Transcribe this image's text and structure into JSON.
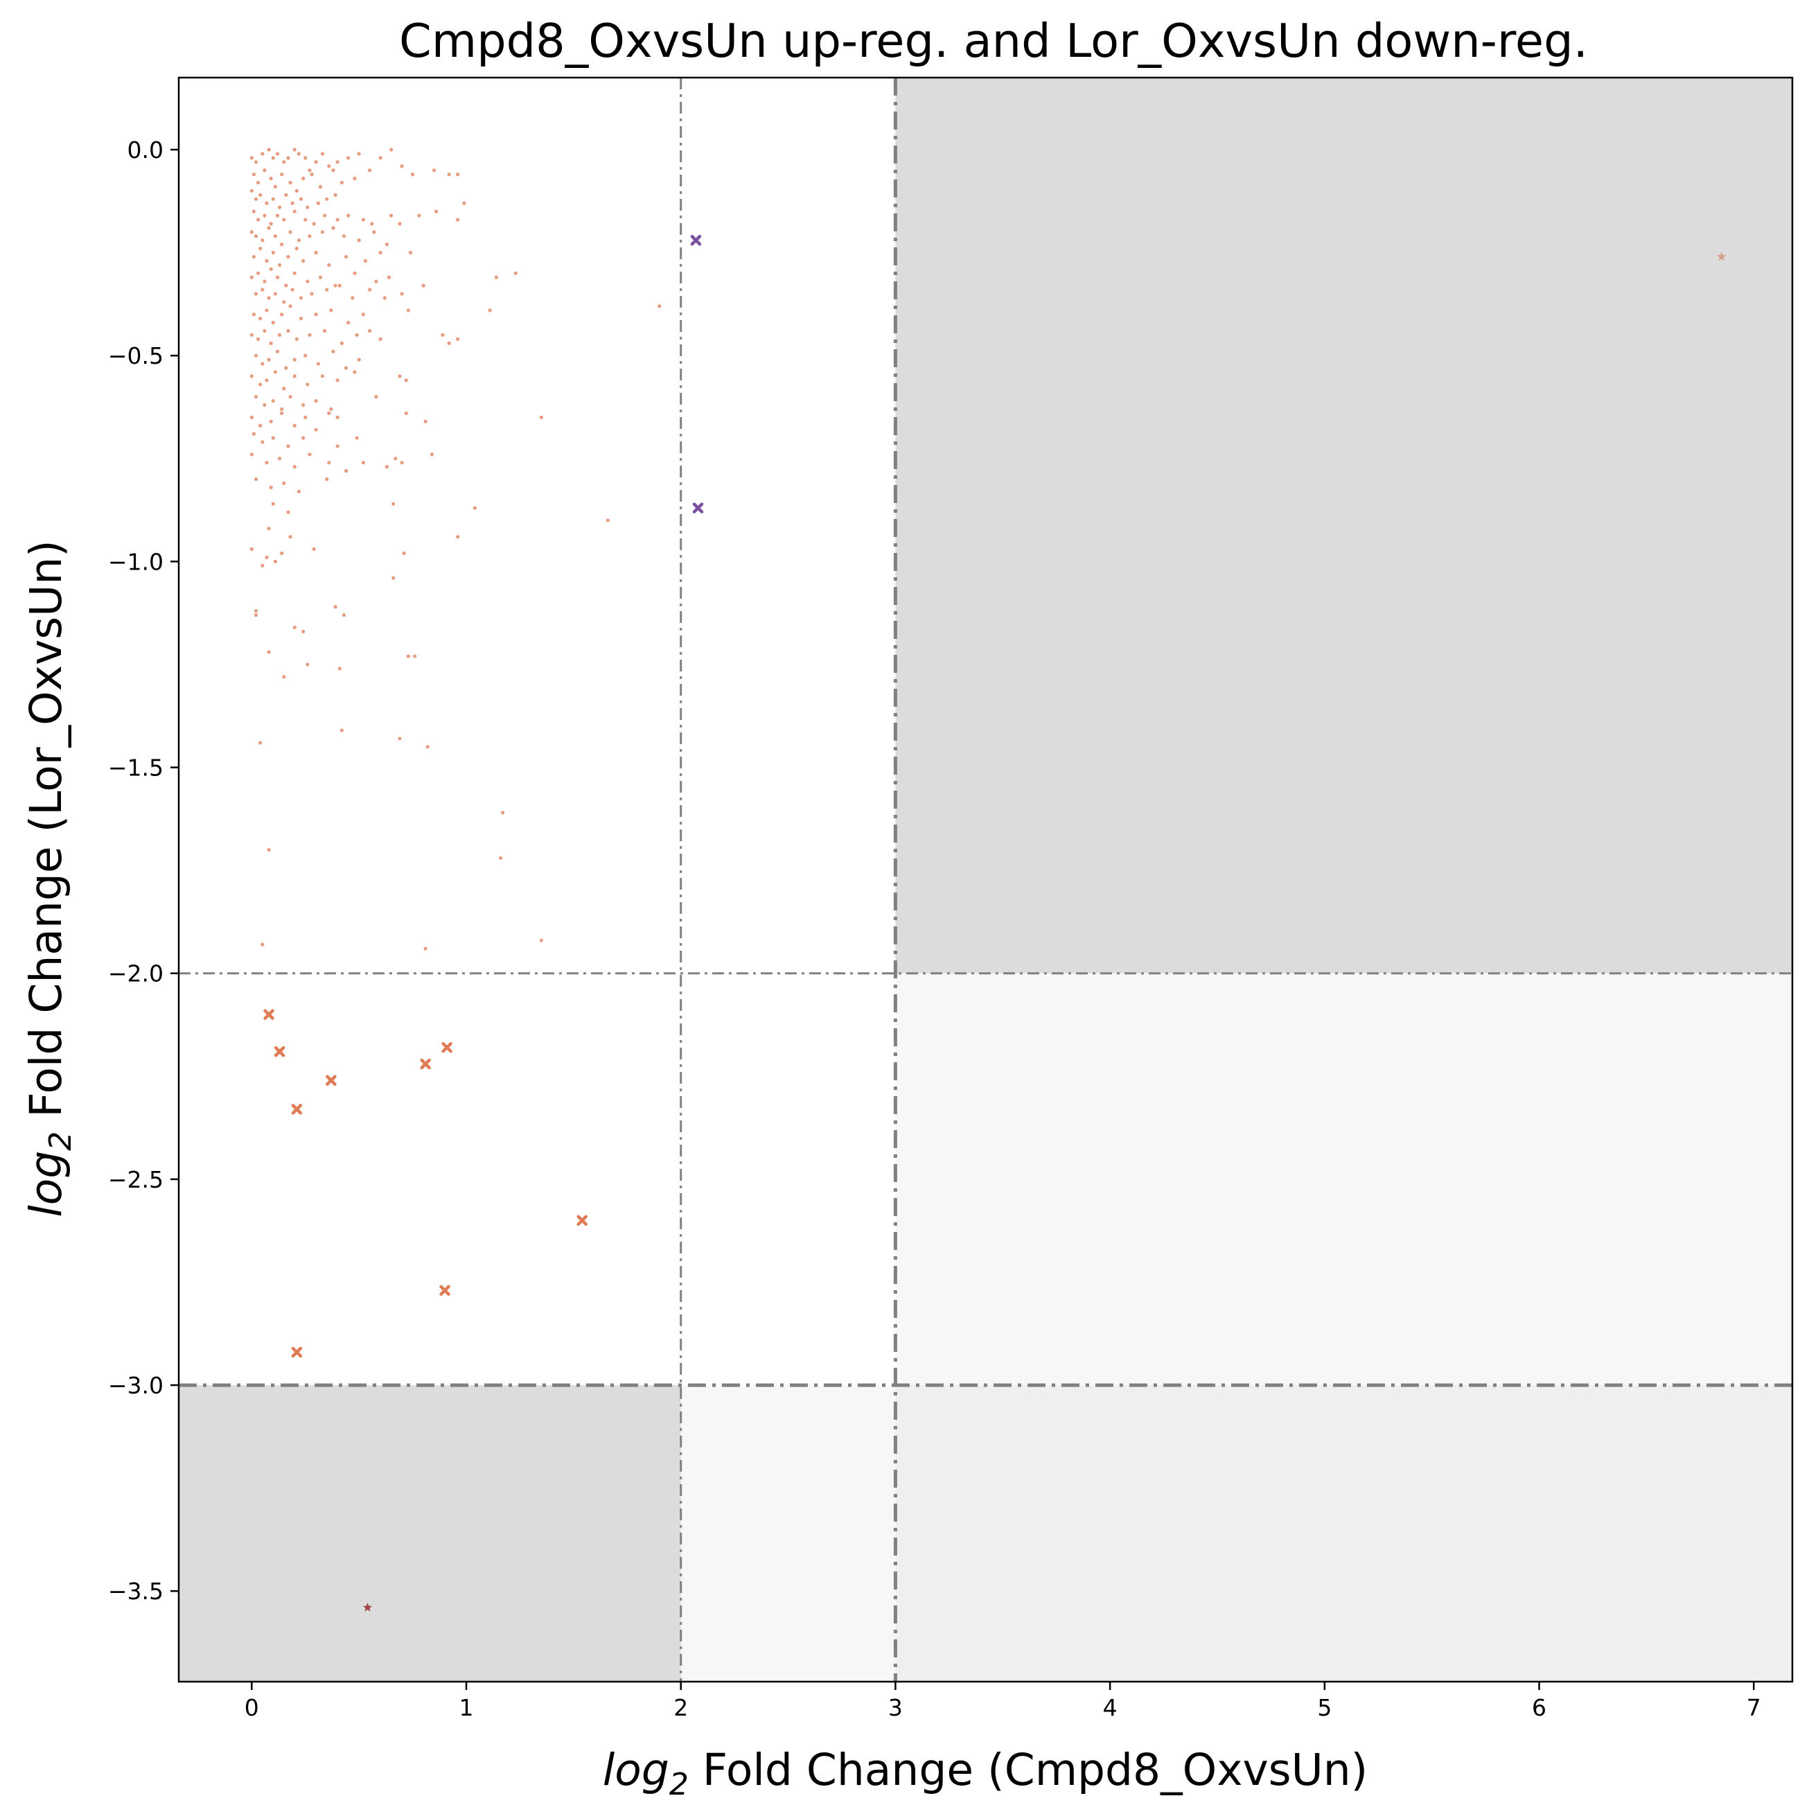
{
  "chart_data": {
    "type": "scatter",
    "title": "Cmpd8_OxvsUn up-reg. and Lor_OxvsUn down-reg.",
    "xlabel": {
      "prefix": "log",
      "sub": "2",
      "rest": " Fold Change (Cmpd8_OxvsUn)"
    },
    "ylabel": {
      "prefix": "log",
      "sub": "2",
      "rest": " Fold Change (Lor_OxvsUn)"
    },
    "xlim": [
      -0.34,
      7.18
    ],
    "ylim": [
      -3.72,
      0.175
    ],
    "xticks": [
      0,
      1,
      2,
      3,
      4,
      5,
      6,
      7
    ],
    "xtick_labels": [
      "0",
      "1",
      "2",
      "3",
      "4",
      "5",
      "6",
      "7"
    ],
    "yticks": [
      0.0,
      -0.5,
      -1.0,
      -1.5,
      -2.0,
      -2.5,
      -3.0,
      -3.5
    ],
    "ytick_labels": [
      "0.0",
      "−0.5",
      "−1.0",
      "−1.5",
      "−2.0",
      "−2.5",
      "−3.0",
      "−3.5"
    ],
    "grid": false,
    "regions": [
      {
        "x": [
          3,
          7.18
        ],
        "y": [
          -2,
          0.175
        ],
        "color": "#dcdcdc"
      },
      {
        "x": [
          -0.34,
          2
        ],
        "y": [
          -3.72,
          -3
        ],
        "color": "#dcdcdc"
      },
      {
        "x": [
          3,
          7.18
        ],
        "y": [
          -3,
          -2
        ],
        "color": "#f7f7f7"
      },
      {
        "x": [
          2,
          3
        ],
        "y": [
          -3.72,
          -3
        ],
        "color": "#f7f7f7"
      },
      {
        "x": [
          3,
          7.18
        ],
        "y": [
          -3.72,
          -3
        ],
        "color": "#efefef"
      }
    ],
    "threshold_lines": [
      {
        "orientation": "vertical",
        "value": 2,
        "style": "thin"
      },
      {
        "orientation": "vertical",
        "value": 3,
        "style": "thick"
      },
      {
        "orientation": "horizontal",
        "value": -2,
        "style": "thin"
      },
      {
        "orientation": "horizontal",
        "value": -3,
        "style": "thick"
      }
    ],
    "series": [
      {
        "marker": "dot",
        "color": "#e07b54",
        "points": [
          [
            0.0,
            -0.02
          ],
          [
            0.02,
            -0.03
          ],
          [
            0.05,
            -0.01
          ],
          [
            0.08,
            0.0
          ],
          [
            0.1,
            -0.02
          ],
          [
            0.12,
            -0.01
          ],
          [
            0.15,
            -0.03
          ],
          [
            0.17,
            -0.02
          ],
          [
            0.2,
            0.0
          ],
          [
            0.22,
            -0.01
          ],
          [
            0.25,
            -0.02
          ],
          [
            0.27,
            -0.05
          ],
          [
            0.3,
            -0.03
          ],
          [
            0.33,
            -0.01
          ],
          [
            0.36,
            -0.04
          ],
          [
            0.4,
            -0.03
          ],
          [
            0.45,
            -0.02
          ],
          [
            0.5,
            -0.01
          ],
          [
            0.55,
            -0.05
          ],
          [
            0.6,
            -0.02
          ],
          [
            0.65,
            0.0
          ],
          [
            0.7,
            -0.04
          ],
          [
            0.01,
            -0.06
          ],
          [
            0.03,
            -0.08
          ],
          [
            0.06,
            -0.05
          ],
          [
            0.09,
            -0.07
          ],
          [
            0.11,
            -0.09
          ],
          [
            0.14,
            -0.06
          ],
          [
            0.18,
            -0.08
          ],
          [
            0.21,
            -0.1
          ],
          [
            0.24,
            -0.07
          ],
          [
            0.28,
            -0.06
          ],
          [
            0.32,
            -0.09
          ],
          [
            0.38,
            -0.05
          ],
          [
            0.42,
            -0.08
          ],
          [
            0.48,
            -0.07
          ],
          [
            0.75,
            -0.06
          ],
          [
            0.85,
            -0.05
          ],
          [
            0.92,
            -0.06
          ],
          [
            0.96,
            -0.06
          ],
          [
            0.0,
            -0.1
          ],
          [
            0.02,
            -0.12
          ],
          [
            0.04,
            -0.11
          ],
          [
            0.07,
            -0.13
          ],
          [
            0.1,
            -0.12
          ],
          [
            0.13,
            -0.14
          ],
          [
            0.16,
            -0.11
          ],
          [
            0.19,
            -0.13
          ],
          [
            0.23,
            -0.12
          ],
          [
            0.26,
            -0.14
          ],
          [
            0.31,
            -0.13
          ],
          [
            0.35,
            -0.12
          ],
          [
            0.39,
            -0.11
          ],
          [
            0.01,
            -0.15
          ],
          [
            0.03,
            -0.17
          ],
          [
            0.06,
            -0.16
          ],
          [
            0.09,
            -0.18
          ],
          [
            0.12,
            -0.16
          ],
          [
            0.15,
            -0.17
          ],
          [
            0.2,
            -0.15
          ],
          [
            0.25,
            -0.17
          ],
          [
            0.29,
            -0.18
          ],
          [
            0.34,
            -0.16
          ],
          [
            0.4,
            -0.17
          ],
          [
            0.45,
            -0.16
          ],
          [
            0.52,
            -0.17
          ],
          [
            0.56,
            -0.18
          ],
          [
            0.65,
            -0.16
          ],
          [
            0.78,
            -0.16
          ],
          [
            0.86,
            -0.15
          ],
          [
            0.99,
            -0.13
          ],
          [
            0.0,
            -0.2
          ],
          [
            0.02,
            -0.21
          ],
          [
            0.05,
            -0.22
          ],
          [
            0.08,
            -0.19
          ],
          [
            0.11,
            -0.21
          ],
          [
            0.14,
            -0.23
          ],
          [
            0.18,
            -0.2
          ],
          [
            0.22,
            -0.22
          ],
          [
            0.27,
            -0.21
          ],
          [
            0.33,
            -0.2
          ],
          [
            0.38,
            -0.19
          ],
          [
            0.43,
            -0.21
          ],
          [
            0.5,
            -0.22
          ],
          [
            0.57,
            -0.2
          ],
          [
            0.63,
            -0.23
          ],
          [
            0.69,
            -0.18
          ],
          [
            0.74,
            -0.25
          ],
          [
            0.96,
            -0.17
          ],
          [
            0.01,
            -0.26
          ],
          [
            0.04,
            -0.24
          ],
          [
            0.07,
            -0.27
          ],
          [
            0.1,
            -0.25
          ],
          [
            0.13,
            -0.28
          ],
          [
            0.17,
            -0.26
          ],
          [
            0.21,
            -0.24
          ],
          [
            0.24,
            -0.27
          ],
          [
            0.3,
            -0.25
          ],
          [
            0.36,
            -0.28
          ],
          [
            0.44,
            -0.26
          ],
          [
            0.53,
            -0.27
          ],
          [
            0.6,
            -0.25
          ],
          [
            0.0,
            -0.31
          ],
          [
            0.03,
            -0.3
          ],
          [
            0.06,
            -0.32
          ],
          [
            0.09,
            -0.29
          ],
          [
            0.12,
            -0.31
          ],
          [
            0.16,
            -0.33
          ],
          [
            0.2,
            -0.3
          ],
          [
            0.26,
            -0.32
          ],
          [
            0.32,
            -0.31
          ],
          [
            0.41,
            -0.33
          ],
          [
            0.48,
            -0.3
          ],
          [
            0.58,
            -0.32
          ],
          [
            0.64,
            -0.31
          ],
          [
            1.14,
            -0.31
          ],
          [
            1.23,
            -0.3
          ],
          [
            0.02,
            -0.35
          ],
          [
            0.05,
            -0.34
          ],
          [
            0.08,
            -0.36
          ],
          [
            0.11,
            -0.35
          ],
          [
            0.15,
            -0.37
          ],
          [
            0.19,
            -0.34
          ],
          [
            0.23,
            -0.36
          ],
          [
            0.28,
            -0.35
          ],
          [
            0.35,
            -0.34
          ],
          [
            0.39,
            -0.33
          ],
          [
            0.47,
            -0.36
          ],
          [
            0.55,
            -0.34
          ],
          [
            0.62,
            -0.36
          ],
          [
            0.7,
            -0.35
          ],
          [
            0.8,
            -0.33
          ],
          [
            0.01,
            -0.4
          ],
          [
            0.04,
            -0.41
          ],
          [
            0.07,
            -0.39
          ],
          [
            0.1,
            -0.42
          ],
          [
            0.14,
            -0.4
          ],
          [
            0.18,
            -0.38
          ],
          [
            0.23,
            -0.41
          ],
          [
            0.3,
            -0.4
          ],
          [
            0.37,
            -0.39
          ],
          [
            0.45,
            -0.42
          ],
          [
            0.52,
            -0.4
          ],
          [
            0.73,
            -0.39
          ],
          [
            1.11,
            -0.39
          ],
          [
            1.9,
            -0.38
          ],
          [
            0.0,
            -0.45
          ],
          [
            0.03,
            -0.46
          ],
          [
            0.06,
            -0.44
          ],
          [
            0.09,
            -0.47
          ],
          [
            0.13,
            -0.45
          ],
          [
            0.17,
            -0.44
          ],
          [
            0.21,
            -0.46
          ],
          [
            0.27,
            -0.45
          ],
          [
            0.34,
            -0.44
          ],
          [
            0.42,
            -0.47
          ],
          [
            0.49,
            -0.45
          ],
          [
            0.55,
            -0.44
          ],
          [
            0.6,
            -0.46
          ],
          [
            0.89,
            -0.45
          ],
          [
            0.92,
            -0.47
          ],
          [
            0.96,
            -0.46
          ],
          [
            0.02,
            -0.5
          ],
          [
            0.05,
            -0.52
          ],
          [
            0.08,
            -0.51
          ],
          [
            0.12,
            -0.49
          ],
          [
            0.16,
            -0.53
          ],
          [
            0.2,
            -0.51
          ],
          [
            0.25,
            -0.5
          ],
          [
            0.31,
            -0.52
          ],
          [
            0.38,
            -0.49
          ],
          [
            0.44,
            -0.53
          ],
          [
            0.5,
            -0.51
          ],
          [
            0.0,
            -0.55
          ],
          [
            0.04,
            -0.57
          ],
          [
            0.07,
            -0.56
          ],
          [
            0.11,
            -0.54
          ],
          [
            0.15,
            -0.58
          ],
          [
            0.2,
            -0.55
          ],
          [
            0.26,
            -0.57
          ],
          [
            0.33,
            -0.55
          ],
          [
            0.4,
            -0.56
          ],
          [
            0.48,
            -0.54
          ],
          [
            0.69,
            -0.55
          ],
          [
            0.72,
            -0.56
          ],
          [
            0.02,
            -0.6
          ],
          [
            0.06,
            -0.62
          ],
          [
            0.1,
            -0.61
          ],
          [
            0.14,
            -0.63
          ],
          [
            0.18,
            -0.6
          ],
          [
            0.24,
            -0.62
          ],
          [
            0.3,
            -0.61
          ],
          [
            0.37,
            -0.63
          ],
          [
            0.58,
            -0.6
          ],
          [
            0.0,
            -0.65
          ],
          [
            0.04,
            -0.67
          ],
          [
            0.09,
            -0.66
          ],
          [
            0.14,
            -0.64
          ],
          [
            0.2,
            -0.67
          ],
          [
            0.25,
            -0.65
          ],
          [
            0.36,
            -0.64
          ],
          [
            0.4,
            -0.65
          ],
          [
            0.72,
            -0.64
          ],
          [
            0.81,
            -0.66
          ],
          [
            1.35,
            -0.65
          ],
          [
            0.01,
            -0.69
          ],
          [
            0.05,
            -0.71
          ],
          [
            0.1,
            -0.7
          ],
          [
            0.17,
            -0.72
          ],
          [
            0.24,
            -0.7
          ],
          [
            0.3,
            -0.68
          ],
          [
            0.4,
            -0.72
          ],
          [
            0.49,
            -0.7
          ],
          [
            0.0,
            -0.74
          ],
          [
            0.07,
            -0.76
          ],
          [
            0.13,
            -0.75
          ],
          [
            0.2,
            -0.77
          ],
          [
            0.27,
            -0.74
          ],
          [
            0.36,
            -0.76
          ],
          [
            0.44,
            -0.78
          ],
          [
            0.52,
            -0.76
          ],
          [
            0.63,
            -0.77
          ],
          [
            0.67,
            -0.75
          ],
          [
            0.7,
            -0.76
          ],
          [
            0.84,
            -0.74
          ],
          [
            0.02,
            -0.8
          ],
          [
            0.09,
            -0.82
          ],
          [
            0.15,
            -0.81
          ],
          [
            0.22,
            -0.83
          ],
          [
            0.35,
            -0.8
          ],
          [
            0.1,
            -0.86
          ],
          [
            0.17,
            -0.88
          ],
          [
            0.66,
            -0.86
          ],
          [
            1.04,
            -0.87
          ],
          [
            1.66,
            -0.9
          ],
          [
            0.08,
            -0.92
          ],
          [
            0.18,
            -0.94
          ],
          [
            0.96,
            -0.94
          ],
          [
            0.0,
            -0.97
          ],
          [
            0.07,
            -0.99
          ],
          [
            0.14,
            -0.98
          ],
          [
            0.29,
            -0.97
          ],
          [
            0.71,
            -0.98
          ],
          [
            0.05,
            -1.01
          ],
          [
            0.11,
            -1.0
          ],
          [
            0.66,
            -1.04
          ],
          [
            0.02,
            -1.12
          ],
          [
            0.02,
            -1.13
          ],
          [
            0.39,
            -1.11
          ],
          [
            0.43,
            -1.13
          ],
          [
            0.2,
            -1.16
          ],
          [
            0.24,
            -1.17
          ],
          [
            0.08,
            -1.22
          ],
          [
            0.26,
            -1.25
          ],
          [
            0.73,
            -1.23
          ],
          [
            0.76,
            -1.23
          ],
          [
            0.41,
            -1.26
          ],
          [
            0.15,
            -1.28
          ],
          [
            0.04,
            -1.44
          ],
          [
            0.42,
            -1.41
          ],
          [
            0.69,
            -1.43
          ],
          [
            0.82,
            -1.45
          ],
          [
            1.17,
            -1.61
          ],
          [
            0.08,
            -1.7
          ],
          [
            1.16,
            -1.72
          ],
          [
            1.35,
            -1.92
          ],
          [
            0.05,
            -1.93
          ],
          [
            0.81,
            -1.94
          ]
        ]
      },
      {
        "marker": "x",
        "color": "#e07b54",
        "points": [
          [
            0.08,
            -2.1
          ],
          [
            0.13,
            -2.19
          ],
          [
            0.91,
            -2.18
          ],
          [
            0.81,
            -2.22
          ],
          [
            0.37,
            -2.26
          ],
          [
            0.21,
            -2.33
          ],
          [
            1.54,
            -2.6
          ],
          [
            0.9,
            -2.77
          ],
          [
            0.21,
            -2.92
          ]
        ]
      },
      {
        "marker": "x",
        "color": "#7b4fa0",
        "points": [
          [
            2.07,
            -0.22
          ],
          [
            2.08,
            -0.87
          ]
        ]
      },
      {
        "marker": "star",
        "color": "#d4a08a",
        "points": [
          [
            6.85,
            -0.26
          ]
        ]
      },
      {
        "marker": "star",
        "color": "#a0404a",
        "points": [
          [
            0.54,
            -3.54
          ]
        ]
      }
    ]
  }
}
